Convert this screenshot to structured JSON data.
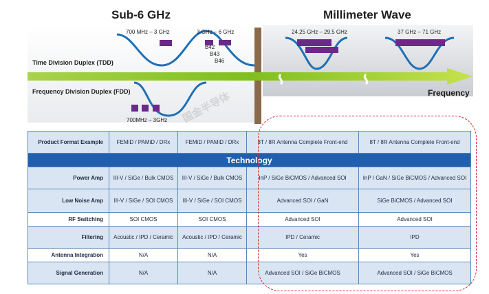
{
  "headers": {
    "sub6": "Sub-6 GHz",
    "mmwave": "Millimeter Wave"
  },
  "bands": {
    "b1": "700 MHz – 3 GHz",
    "b2": "3 GHz – 6 GHz",
    "b42": "B42",
    "b43": "B43",
    "b46": "B46",
    "mm1": "24.25 GHz – 29.5 GHz",
    "mm2": "37 GHz – 71 GHz",
    "fdd_band": "700MHz – 3GHz"
  },
  "labels": {
    "tdd": "Time Division Duplex (TDD)",
    "fdd": "Frequency Division Duplex (FDD)",
    "frequency": "Frequency",
    "watermark": "国金半导体"
  },
  "colors": {
    "curve": "#1f6fb4",
    "band_block": "#6a2a8a",
    "arrow": "#7fbf1e",
    "header_blue": "#1f5fae",
    "light_row": "#d9e5f3",
    "dashed": "#d9212a"
  },
  "table": {
    "format_row": {
      "label": "Product Format Example",
      "c1": "FEMiD / PAMiD / DRx",
      "c2": "FEMiD / PAMiD / DRx",
      "c3": "8T / 8R Antenna Complete Front-end",
      "c4": "8T / 8R Antenna Complete Front-end"
    },
    "technology": "Technology",
    "rows": [
      {
        "label": "Power Amp",
        "c1": "III-V / SiGe / Bulk CMOS",
        "c2": "III-V / SiGe / Bulk CMOS",
        "c3": "InP / SiGe BiCMOS / Advanced SOI",
        "c4": "InP / GaN / SiGe BiCMOS / Advanced SOI"
      },
      {
        "label": "Low Noise Amp",
        "c1": "III-V / SiGe / SOI CMOS",
        "c2": "III-V / SiGe / SOI CMOS",
        "c3": "Advanced SOI / GaN",
        "c4": "SiGe BiCMOS / Advanced SOI"
      },
      {
        "label": "RF Switching",
        "c1": "SOI CMOS",
        "c2": "SOI CMOS",
        "c3": "Advanced SOI",
        "c4": "Advanced SOI"
      },
      {
        "label": "Filtering",
        "c1": "Acoustic / IPD / Ceramic",
        "c2": "Acoustic / IPD / Ceramic",
        "c3": "IPD / Ceramic",
        "c4": "IPD"
      },
      {
        "label": "Antenna Integration",
        "c1": "N/A",
        "c2": "N/A",
        "c3": "Yes",
        "c4": "Yes"
      },
      {
        "label": "Signal Generation",
        "c1": "N/A",
        "c2": "N/A",
        "c3": "Advanced SOI / SiGe BiCMOS",
        "c4": "Advanced SOI / SiGe BiCMOS"
      }
    ]
  }
}
